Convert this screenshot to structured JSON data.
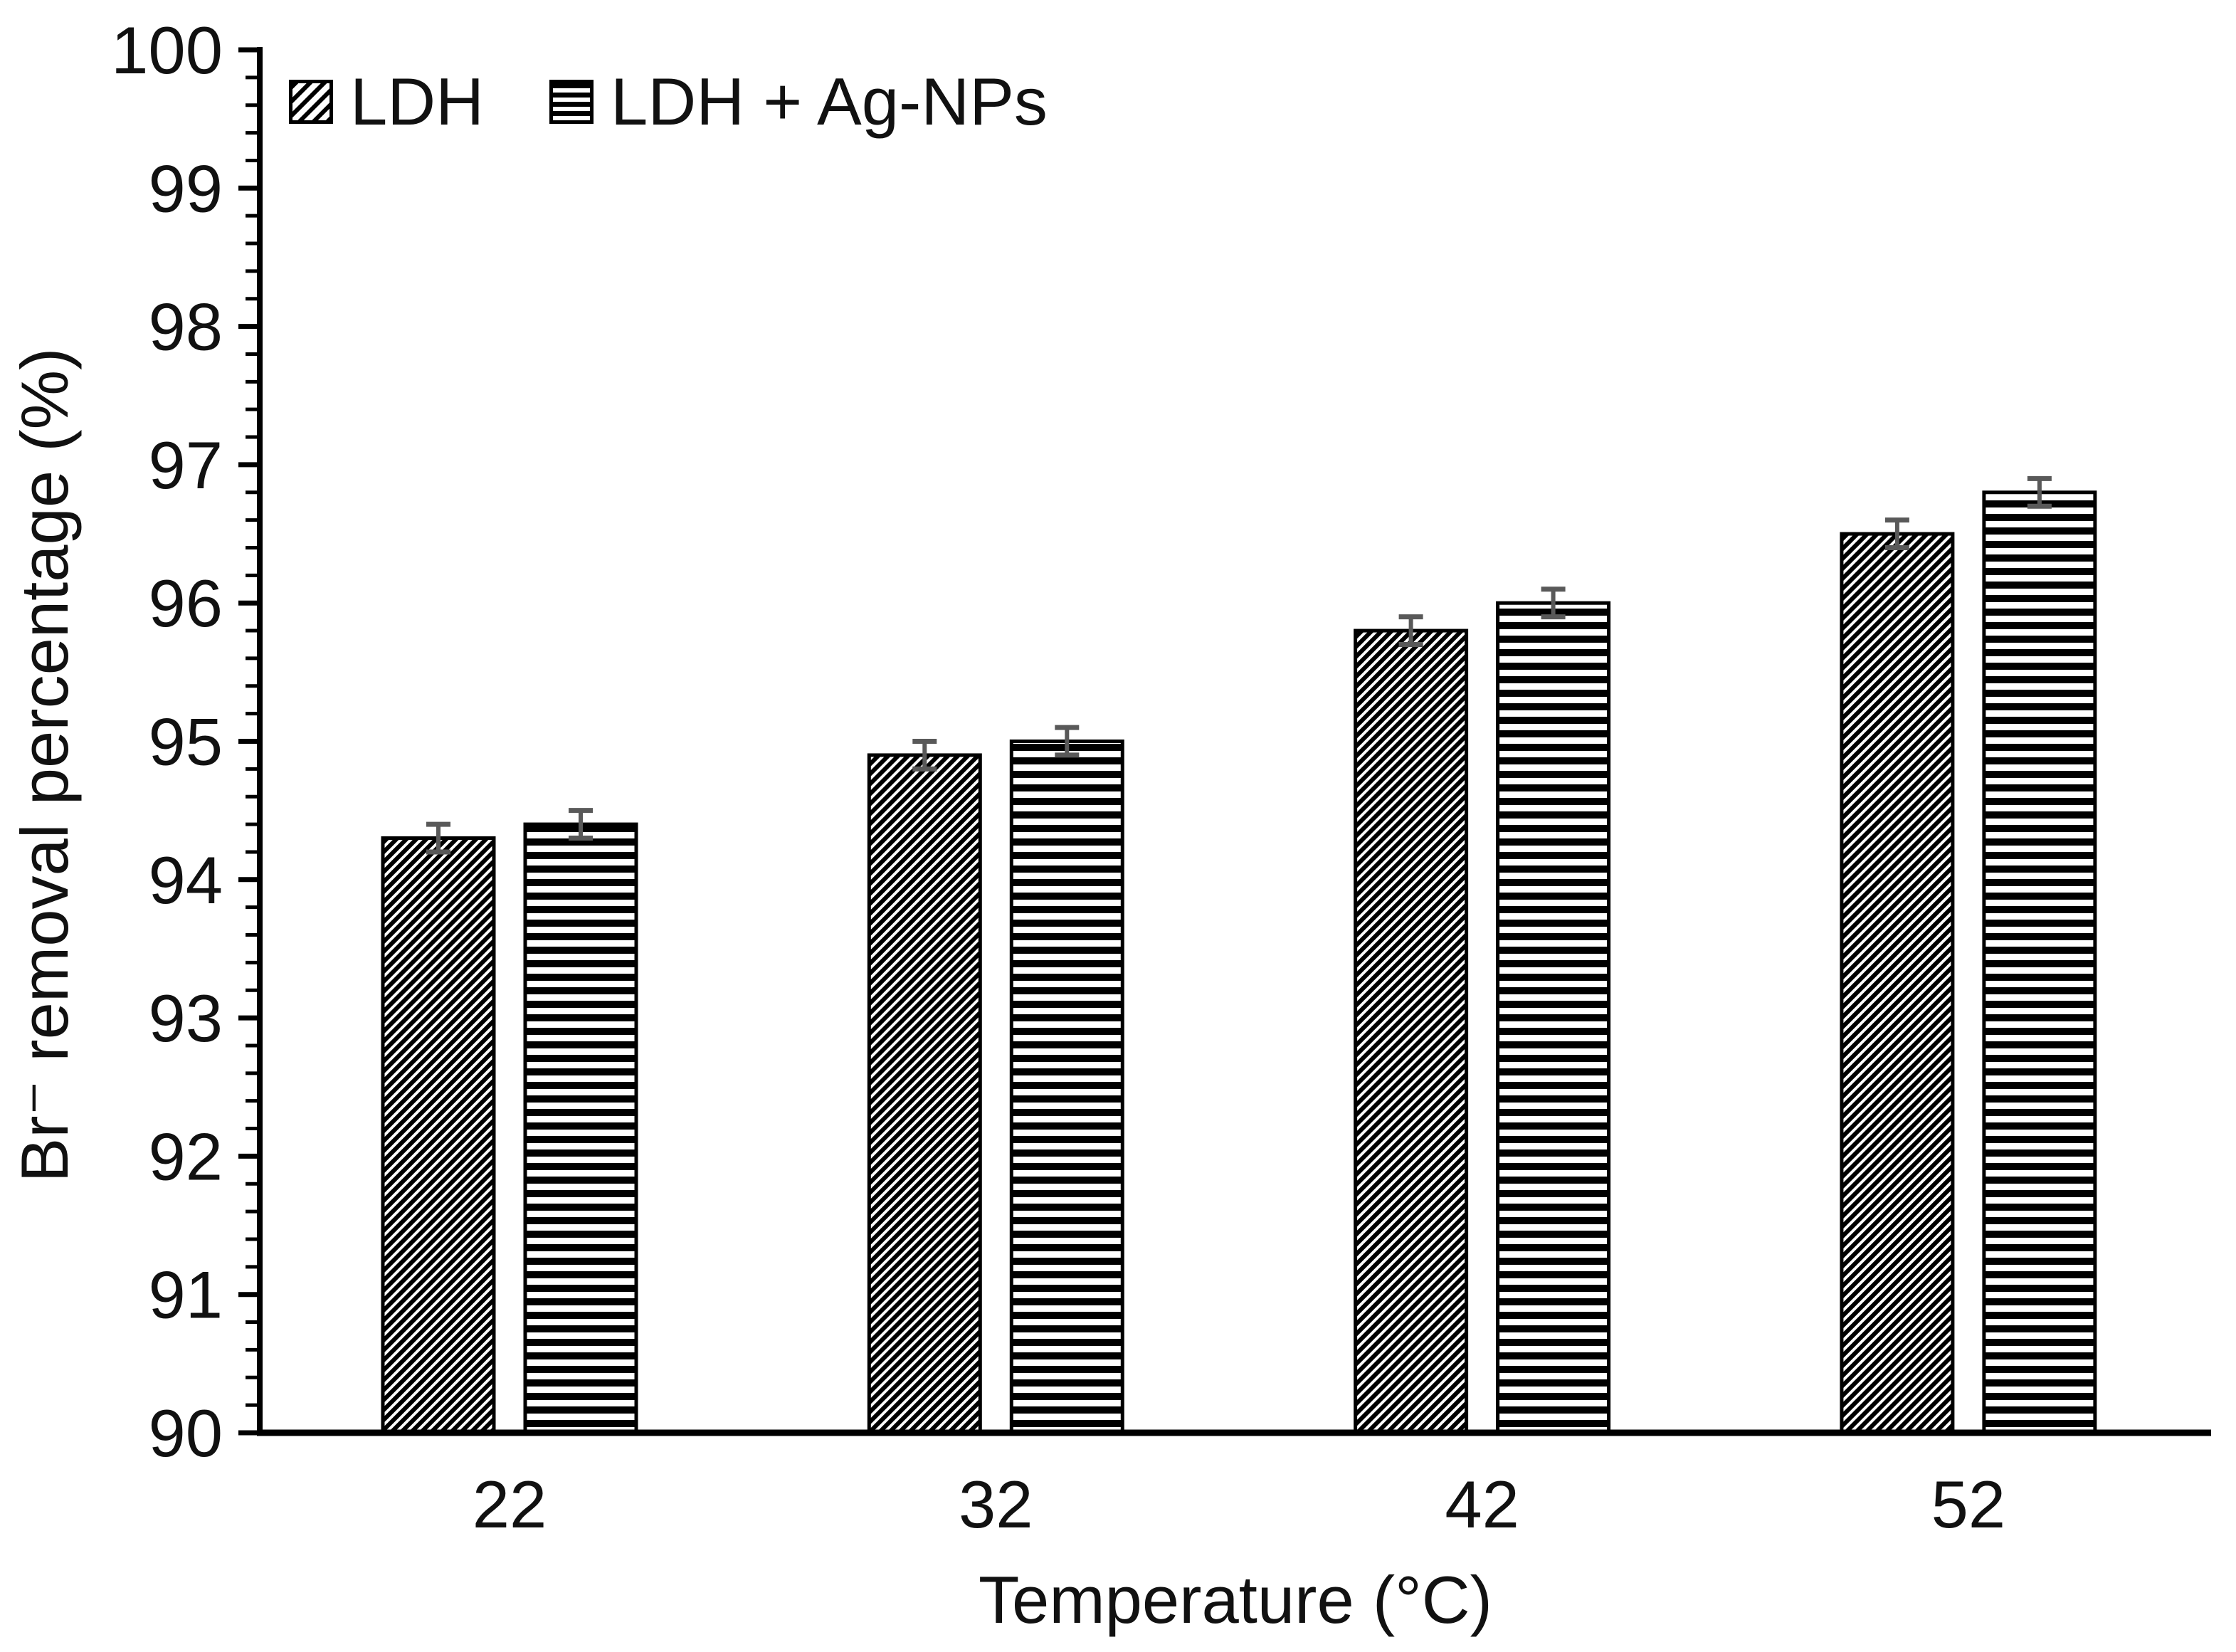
{
  "chart_data": {
    "type": "bar",
    "title": "",
    "xlabel": "Temperature (°C)",
    "ylabel": "Br⁻ removal percentage (%)",
    "categories": [
      "22",
      "32",
      "42",
      "52"
    ],
    "series": [
      {
        "name": "LDH",
        "pattern": "diagonal-hatch",
        "values": [
          94.3,
          94.9,
          95.8,
          96.5
        ],
        "errors": [
          0.1,
          0.1,
          0.1,
          0.1
        ]
      },
      {
        "name": "LDH + Ag-NPs",
        "pattern": "horizontal-stripes",
        "values": [
          94.4,
          95.0,
          96.0,
          96.8
        ],
        "errors": [
          0.1,
          0.1,
          0.1,
          0.1
        ]
      }
    ],
    "ylim": [
      90,
      100
    ],
    "ytick_step": 1,
    "yminor_step": 0.2,
    "grid": false,
    "legend_position": "top-left",
    "colors": {
      "bar_fill": "#000000",
      "bar_outline": "#000000",
      "error_bar": "#595959",
      "text": "#111111",
      "background": "#ffffff"
    }
  }
}
